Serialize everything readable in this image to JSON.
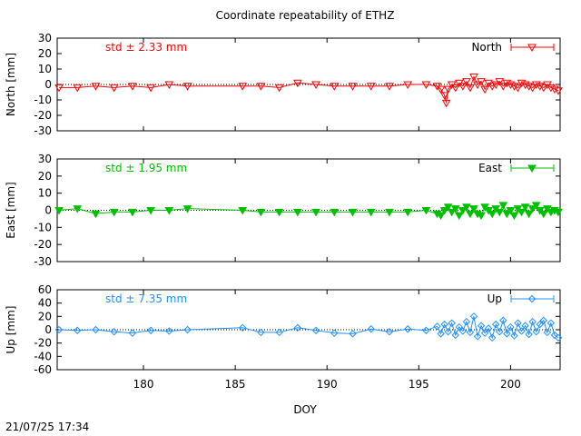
{
  "title": "Coordinate repeatability of ETHZ",
  "timestamp": "21/07/25 17:34",
  "colors": {
    "north": "#ff0000",
    "east": "#00c000",
    "up": "#1e90ff"
  },
  "chart_data": [
    {
      "type": "line",
      "name": "North",
      "ylabel": "North [mm]",
      "std_label": "std ± 2.33 mm",
      "xlim": [
        175.3,
        202.7
      ],
      "ylim": [
        -30,
        30
      ],
      "yticks": [
        "30",
        "20",
        "10",
        "0",
        "-10",
        "-20",
        "-30"
      ],
      "x": [
        175.4,
        176.4,
        177.4,
        178.4,
        179.4,
        180.4,
        181.4,
        182.4,
        185.4,
        186.4,
        187.4,
        188.4,
        189.4,
        190.4,
        191.4,
        192.4,
        193.4,
        194.4,
        195.4,
        196.0,
        196.2,
        196.4,
        196.5,
        196.6,
        196.8,
        197.0,
        197.2,
        197.4,
        197.6,
        197.8,
        198.0,
        198.2,
        198.4,
        198.6,
        198.8,
        199.0,
        199.2,
        199.4,
        199.6,
        199.8,
        200.0,
        200.2,
        200.4,
        200.6,
        200.8,
        201.0,
        201.2,
        201.4,
        201.6,
        201.8,
        202.0,
        202.2,
        202.4,
        202.6
      ],
      "y": [
        -2,
        -2,
        -1,
        -2,
        -1,
        -2,
        0,
        -1,
        -1,
        -1,
        -2,
        1,
        0,
        -1,
        -1,
        -1,
        -1,
        0,
        0,
        -1,
        -3,
        -7,
        -12,
        -3,
        0,
        -2,
        1,
        -1,
        2,
        -2,
        5,
        0,
        2,
        -3,
        1,
        -1,
        0,
        2,
        -1,
        1,
        0,
        -1,
        -2,
        1,
        0,
        -1,
        -2,
        0,
        -1,
        -2,
        0,
        -2,
        -3,
        -4
      ],
      "legend": "top-right"
    },
    {
      "type": "line",
      "name": "East",
      "ylabel": "East [mm]",
      "std_label": "std ± 1.95 mm",
      "xlim": [
        175.3,
        202.7
      ],
      "ylim": [
        -30,
        30
      ],
      "yticks": [
        "30",
        "20",
        "10",
        "0",
        "-10",
        "-20",
        "-30"
      ],
      "x": [
        175.4,
        176.4,
        177.4,
        178.4,
        179.4,
        180.4,
        181.4,
        182.4,
        185.4,
        186.4,
        187.4,
        188.4,
        189.4,
        190.4,
        191.4,
        192.4,
        193.4,
        194.4,
        195.4,
        196.0,
        196.2,
        196.4,
        196.6,
        196.8,
        197.0,
        197.2,
        197.4,
        197.6,
        197.8,
        198.0,
        198.2,
        198.4,
        198.6,
        198.8,
        199.0,
        199.2,
        199.4,
        199.6,
        199.8,
        200.0,
        200.2,
        200.4,
        200.6,
        200.8,
        201.0,
        201.2,
        201.4,
        201.6,
        201.8,
        202.0,
        202.2,
        202.4,
        202.6
      ],
      "y": [
        0,
        1,
        -2,
        -1,
        -1,
        0,
        0,
        1,
        0,
        -1,
        -1,
        -1,
        -1,
        -1,
        -1,
        -1,
        -1,
        -1,
        0,
        -2,
        -3,
        0,
        2,
        -1,
        1,
        -3,
        0,
        2,
        -2,
        1,
        -2,
        -3,
        2,
        0,
        -2,
        1,
        -1,
        3,
        -2,
        0,
        -3,
        1,
        -1,
        2,
        -2,
        1,
        3,
        0,
        -2,
        1,
        -1,
        0,
        -1
      ],
      "legend": "top-right"
    },
    {
      "type": "line",
      "name": "Up",
      "ylabel": "Up [mm]",
      "std_label": "std ± 7.35 mm",
      "xlim": [
        175.3,
        202.7
      ],
      "ylim": [
        -60,
        60
      ],
      "yticks": [
        "60",
        "40",
        "20",
        "0",
        "-20",
        "-40",
        "-60"
      ],
      "x": [
        175.4,
        176.4,
        177.4,
        178.4,
        179.4,
        180.4,
        181.4,
        182.4,
        185.4,
        186.4,
        187.4,
        188.4,
        189.4,
        190.4,
        191.4,
        192.4,
        193.4,
        194.4,
        195.4,
        196.0,
        196.2,
        196.4,
        196.6,
        196.8,
        197.0,
        197.2,
        197.4,
        197.6,
        197.8,
        198.0,
        198.2,
        198.4,
        198.6,
        198.8,
        199.0,
        199.2,
        199.4,
        199.6,
        199.8,
        200.0,
        200.2,
        200.4,
        200.6,
        200.8,
        201.0,
        201.2,
        201.4,
        201.6,
        201.8,
        202.0,
        202.2,
        202.4,
        202.6
      ],
      "y": [
        0,
        -1,
        0,
        -3,
        -5,
        -1,
        -2,
        0,
        3,
        -4,
        -4,
        3,
        -1,
        -5,
        -6,
        1,
        -3,
        1,
        -1,
        5,
        -6,
        8,
        -3,
        10,
        -8,
        4,
        -2,
        12,
        -4,
        20,
        -10,
        6,
        -5,
        2,
        -12,
        8,
        -3,
        14,
        -6,
        4,
        -9,
        10,
        -2,
        6,
        -7,
        12,
        -3,
        8,
        14,
        -4,
        10,
        -8,
        -12
      ],
      "legend": "top-right"
    }
  ],
  "xaxis": {
    "label": "DOY",
    "ticks": [
      180,
      185,
      190,
      195,
      200
    ]
  }
}
